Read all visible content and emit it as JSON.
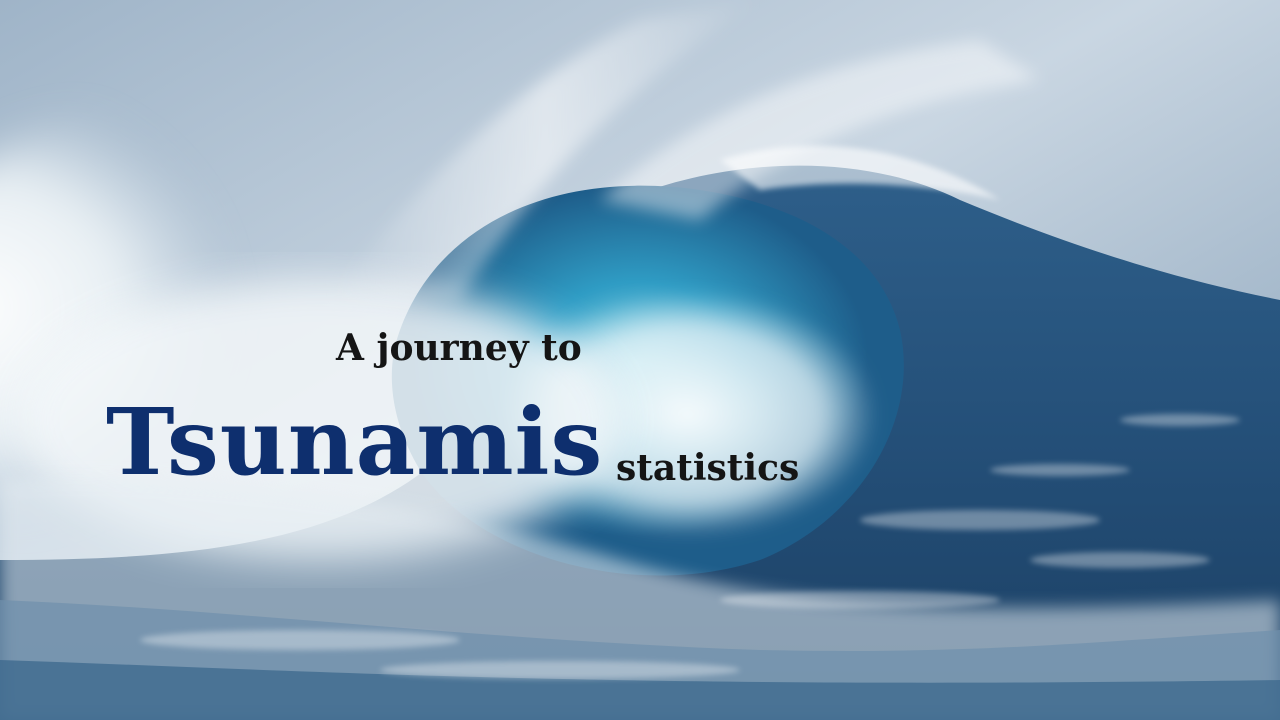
{
  "slide": {
    "line1": "A journey to",
    "title": "Tsunamis",
    "line2": "statistics"
  },
  "background": {
    "image": "ocean-wave-photo",
    "colors": {
      "sky": "#c9d6e2",
      "foam": "#f4f8fa",
      "turquoise": "#3aa7c9",
      "deep": "#1f4f7a",
      "title": "#0e2f6e",
      "text": "#151515"
    }
  }
}
